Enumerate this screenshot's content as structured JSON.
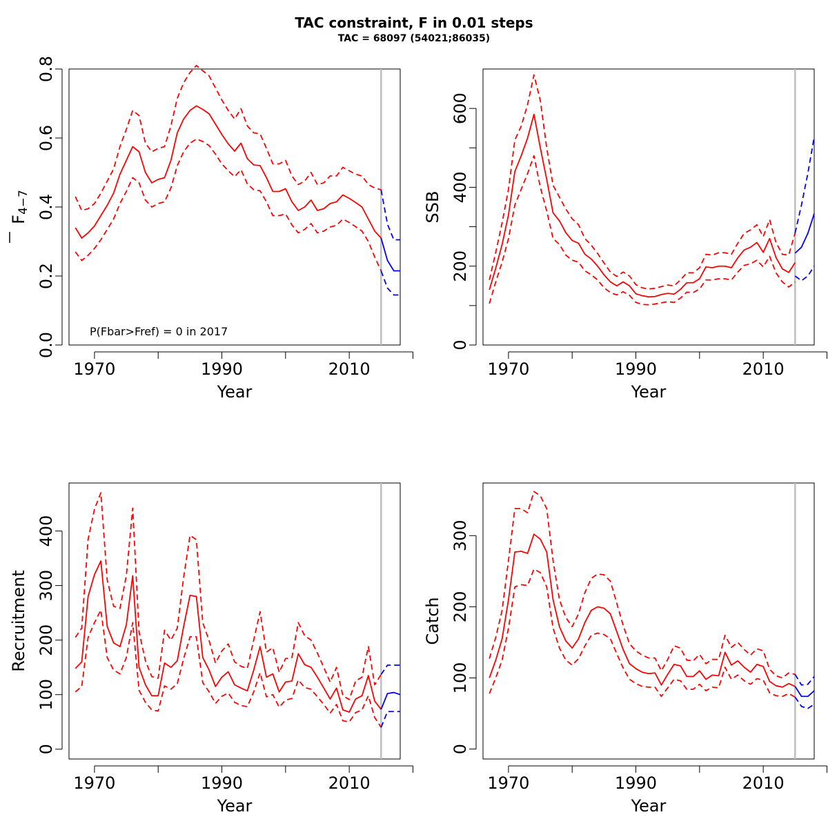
{
  "figure": {
    "title": "TAC constraint, F in 0.01 steps",
    "subtitle": "TAC = 68097 (54021;86035)"
  },
  "chart_data": [
    {
      "id": "fbar",
      "type": "line",
      "ylabel_main": "F",
      "ylabel_sub": "4−7",
      "xlabel": "Year",
      "xlim": [
        1966,
        2018
      ],
      "ylim": [
        0,
        0.8
      ],
      "xticks": [
        1970,
        1980,
        1990,
        2000,
        2010,
        2020
      ],
      "xtick_labels": [
        "1970",
        "",
        "1990",
        "",
        "2010",
        ""
      ],
      "yticks": [
        0,
        0.2,
        0.4,
        0.6,
        0.8
      ],
      "ytick_labels": [
        "0.0",
        "0.2",
        "0.4",
        "0.6",
        "0.8"
      ],
      "vline": 2015,
      "annotation": "P(Fbar>Fref) = 0  in 2017",
      "x": [
        1967,
        1968,
        1969,
        1970,
        1971,
        1972,
        1973,
        1974,
        1975,
        1976,
        1977,
        1978,
        1979,
        1980,
        1981,
        1982,
        1983,
        1984,
        1985,
        1986,
        1987,
        1988,
        1989,
        1990,
        1991,
        1992,
        1993,
        1994,
        1995,
        1996,
        1997,
        1998,
        1999,
        2000,
        2001,
        2002,
        2003,
        2004,
        2005,
        2006,
        2007,
        2008,
        2009,
        2010,
        2011,
        2012,
        2013,
        2014,
        2015
      ],
      "series": [
        {
          "values": [
            0.34,
            0.31,
            0.325,
            0.345,
            0.375,
            0.405,
            0.44,
            0.495,
            0.535,
            0.575,
            0.56,
            0.5,
            0.47,
            0.48,
            0.485,
            0.535,
            0.615,
            0.655,
            0.68,
            0.693,
            0.683,
            0.67,
            0.64,
            0.61,
            0.583,
            0.562,
            0.585,
            0.54,
            0.522,
            0.52,
            0.485,
            0.445,
            0.445,
            0.453,
            0.415,
            0.39,
            0.4,
            0.42,
            0.39,
            0.395,
            0.41,
            0.415,
            0.435,
            0.425,
            0.413,
            0.4,
            0.365,
            0.33,
            0.31
          ],
          "color": "#ff0000",
          "dash": false
        },
        {
          "values": [
            0.43,
            0.39,
            0.395,
            0.41,
            0.44,
            0.475,
            0.51,
            0.575,
            0.625,
            0.68,
            0.665,
            0.585,
            0.56,
            0.57,
            0.575,
            0.635,
            0.715,
            0.76,
            0.79,
            0.81,
            0.795,
            0.78,
            0.745,
            0.71,
            0.68,
            0.655,
            0.685,
            0.635,
            0.615,
            0.612,
            0.57,
            0.525,
            0.525,
            0.535,
            0.49,
            0.465,
            0.475,
            0.5,
            0.465,
            0.47,
            0.49,
            0.49,
            0.515,
            0.505,
            0.495,
            0.49,
            0.465,
            0.455,
            0.45
          ],
          "color": "#ff0000",
          "dash": true
        },
        {
          "values": [
            0.27,
            0.245,
            0.26,
            0.28,
            0.305,
            0.335,
            0.365,
            0.41,
            0.445,
            0.485,
            0.47,
            0.42,
            0.4,
            0.41,
            0.415,
            0.455,
            0.52,
            0.56,
            0.585,
            0.597,
            0.59,
            0.578,
            0.553,
            0.525,
            0.505,
            0.488,
            0.508,
            0.467,
            0.45,
            0.447,
            0.415,
            0.375,
            0.375,
            0.38,
            0.348,
            0.325,
            0.335,
            0.352,
            0.325,
            0.33,
            0.342,
            0.347,
            0.365,
            0.355,
            0.343,
            0.33,
            0.3,
            0.255,
            0.215
          ],
          "color": "#ff0000",
          "dash": true
        }
      ],
      "projection_x": [
        2015,
        2016,
        2017,
        2018
      ],
      "projection": [
        {
          "values": [
            0.31,
            0.245,
            0.215,
            0.215
          ],
          "color": "#0000ff",
          "dash": false
        },
        {
          "values": [
            0.45,
            0.35,
            0.305,
            0.305
          ],
          "color": "#0000ff",
          "dash": true
        },
        {
          "values": [
            0.215,
            0.165,
            0.145,
            0.145
          ],
          "color": "#0000ff",
          "dash": true
        }
      ]
    },
    {
      "id": "ssb",
      "type": "line",
      "ylabel_main": "SSB",
      "ylabel_sub": "",
      "xlabel": "Year",
      "xlim": [
        1966,
        2018
      ],
      "ylim": [
        0,
        700
      ],
      "xticks": [
        1970,
        1980,
        1990,
        2000,
        2010,
        2020
      ],
      "xtick_labels": [
        "1970",
        "",
        "1990",
        "",
        "2010",
        ""
      ],
      "yticks": [
        0,
        100,
        200,
        300,
        400,
        500,
        600
      ],
      "ytick_labels": [
        "0",
        "",
        "200",
        "",
        "400",
        "",
        "600"
      ],
      "vline": 2015,
      "annotation": "",
      "x": [
        1967,
        1968,
        1969,
        1970,
        1971,
        1972,
        1973,
        1974,
        1975,
        1976,
        1977,
        1978,
        1979,
        1980,
        1981,
        1982,
        1983,
        1984,
        1985,
        1986,
        1987,
        1988,
        1989,
        1990,
        1991,
        1992,
        1993,
        1994,
        1995,
        1996,
        1997,
        1998,
        1999,
        2000,
        2001,
        2002,
        2003,
        2004,
        2005,
        2006,
        2007,
        2008,
        2009,
        2010,
        2011,
        2012,
        2013,
        2014,
        2015
      ],
      "series": [
        {
          "values": [
            140,
            195,
            255,
            330,
            440,
            480,
            525,
            585,
            500,
            420,
            335,
            315,
            285,
            265,
            258,
            230,
            218,
            200,
            178,
            160,
            150,
            160,
            150,
            130,
            125,
            122,
            123,
            128,
            131,
            129,
            141,
            158,
            158,
            168,
            198,
            196,
            200,
            200,
            196,
            221,
            241,
            248,
            260,
            235,
            270,
            222,
            193,
            184,
            209
          ],
          "color": "#ff0000",
          "dash": false
        },
        {
          "values": [
            165,
            235,
            310,
            395,
            520,
            555,
            610,
            685,
            620,
            500,
            405,
            375,
            345,
            320,
            305,
            270,
            253,
            232,
            208,
            185,
            174,
            185,
            175,
            153,
            145,
            142,
            144,
            148,
            152,
            150,
            165,
            183,
            183,
            196,
            230,
            228,
            234,
            234,
            230,
            258,
            283,
            292,
            305,
            275,
            318,
            260,
            230,
            228,
            284
          ],
          "color": "#ff0000",
          "dash": true
        },
        {
          "values": [
            105,
            160,
            210,
            270,
            355,
            395,
            435,
            480,
            400,
            340,
            270,
            255,
            228,
            215,
            210,
            188,
            178,
            165,
            145,
            133,
            127,
            135,
            126,
            108,
            103,
            102,
            104,
            107,
            110,
            108,
            119,
            134,
            133,
            142,
            165,
            165,
            168,
            168,
            165,
            185,
            202,
            206,
            215,
            198,
            225,
            183,
            160,
            147,
            160
          ],
          "color": "#ff0000",
          "dash": true
        }
      ],
      "projection_x": [
        2015,
        2016,
        2017,
        2018
      ],
      "projection": [
        {
          "values": [
            233,
            248,
            283,
            333
          ],
          "color": "#0000ff",
          "dash": false
        },
        {
          "values": [
            284,
            355,
            435,
            528
          ],
          "color": "#0000ff",
          "dash": true
        },
        {
          "values": [
            175,
            163,
            175,
            200
          ],
          "color": "#0000ff",
          "dash": true
        }
      ]
    },
    {
      "id": "recruitment",
      "type": "line",
      "ylabel_main": "Recruitment",
      "ylabel_sub": "",
      "xlabel": "Year",
      "xlim": [
        1966,
        2018
      ],
      "ylim": [
        -18,
        488
      ],
      "xticks": [
        1970,
        1980,
        1990,
        2000,
        2010,
        2020
      ],
      "xtick_labels": [
        "1970",
        "",
        "1990",
        "",
        "2010",
        ""
      ],
      "yticks": [
        0,
        100,
        200,
        300,
        400
      ],
      "ytick_labels": [
        "0",
        "100",
        "200",
        "300",
        "400"
      ],
      "vline": 2015,
      "annotation": "",
      "x": [
        1967,
        1968,
        1969,
        1970,
        1971,
        1972,
        1973,
        1974,
        1975,
        1976,
        1977,
        1978,
        1979,
        1980,
        1981,
        1982,
        1983,
        1984,
        1985,
        1986,
        1987,
        1988,
        1989,
        1990,
        1991,
        1992,
        1993,
        1994,
        1995,
        1996,
        1997,
        1998,
        1999,
        2000,
        2001,
        2002,
        2003,
        2004,
        2005,
        2006,
        2007,
        2008,
        2009,
        2010,
        2011,
        2012,
        2013,
        2014,
        2015
      ],
      "series": [
        {
          "values": [
            148,
            160,
            280,
            320,
            345,
            225,
            195,
            188,
            228,
            318,
            150,
            118,
            98,
            98,
            158,
            150,
            162,
            225,
            282,
            280,
            168,
            145,
            115,
            132,
            142,
            118,
            112,
            107,
            145,
            188,
            132,
            138,
            105,
            123,
            125,
            175,
            155,
            150,
            132,
            112,
            92,
            112,
            72,
            68,
            92,
            98,
            135,
            88,
            73
          ],
          "color": "#ff0000",
          "dash": false
        },
        {
          "values": [
            205,
            222,
            385,
            440,
            470,
            310,
            262,
            258,
            318,
            442,
            215,
            162,
            133,
            130,
            218,
            200,
            222,
            315,
            392,
            384,
            232,
            199,
            158,
            180,
            193,
            160,
            152,
            148,
            200,
            252,
            178,
            186,
            141,
            166,
            168,
            232,
            208,
            200,
            176,
            150,
            123,
            150,
            98,
            91,
            125,
            132,
            188,
            118,
            137
          ],
          "color": "#ff0000",
          "dash": true
        },
        {
          "values": [
            105,
            115,
            205,
            232,
            255,
            168,
            145,
            138,
            168,
            232,
            108,
            86,
            72,
            70,
            116,
            110,
            120,
            166,
            206,
            206,
            122,
            105,
            84,
            97,
            103,
            86,
            80,
            78,
            105,
            140,
            96,
            100,
            77,
            90,
            93,
            127,
            113,
            110,
            96,
            82,
            66,
            82,
            52,
            50,
            67,
            72,
            98,
            58,
            40
          ],
          "color": "#ff0000",
          "dash": true
        }
      ],
      "projection_x": [
        2015,
        2016,
        2017,
        2018
      ],
      "projection": [
        {
          "values": [
            73,
            102,
            104,
            100
          ],
          "color": "#0000ff",
          "dash": false
        },
        {
          "values": [
            137,
            154,
            154,
            154
          ],
          "color": "#0000ff",
          "dash": true
        },
        {
          "values": [
            40,
            69,
            69,
            69
          ],
          "color": "#0000ff",
          "dash": true
        }
      ]
    },
    {
      "id": "catch",
      "type": "line",
      "ylabel_main": "Catch",
      "ylabel_sub": "",
      "xlabel": "Year",
      "xlim": [
        1966,
        2018
      ],
      "ylim": [
        -14,
        374
      ],
      "xticks": [
        1970,
        1980,
        1990,
        2000,
        2010,
        2020
      ],
      "xtick_labels": [
        "1970",
        "",
        "1990",
        "",
        "2010",
        ""
      ],
      "yticks": [
        0,
        100,
        200,
        300
      ],
      "ytick_labels": [
        "0",
        "100",
        "200",
        "300"
      ],
      "vline": 2015,
      "annotation": "",
      "x": [
        1967,
        1968,
        1969,
        1970,
        1971,
        1972,
        1973,
        1974,
        1975,
        1976,
        1977,
        1978,
        1979,
        1980,
        1981,
        1982,
        1983,
        1984,
        1985,
        1986,
        1987,
        1988,
        1989,
        1990,
        1991,
        1992,
        1993,
        1994,
        1995,
        1996,
        1997,
        1998,
        1999,
        2000,
        2001,
        2002,
        2003,
        2004,
        2005,
        2006,
        2007,
        2008,
        2009,
        2010,
        2011,
        2012,
        2013,
        2014,
        2015
      ],
      "series": [
        {
          "values": [
            100,
            125,
            155,
            210,
            277,
            278,
            275,
            302,
            295,
            277,
            210,
            172,
            152,
            142,
            155,
            178,
            195,
            200,
            198,
            190,
            165,
            140,
            120,
            113,
            108,
            106,
            107,
            90,
            105,
            119,
            117,
            102,
            102,
            110,
            98,
            104,
            103,
            136,
            118,
            124,
            115,
            108,
            119,
            116,
            95,
            89,
            87,
            92,
            88
          ],
          "color": "#ff0000",
          "dash": false
        },
        {
          "values": [
            127,
            157,
            195,
            265,
            338,
            338,
            332,
            362,
            356,
            338,
            265,
            210,
            185,
            172,
            190,
            220,
            240,
            246,
            245,
            236,
            205,
            174,
            148,
            138,
            132,
            128,
            128,
            110,
            126,
            145,
            142,
            125,
            124,
            133,
            120,
            126,
            126,
            160,
            143,
            150,
            140,
            132,
            141,
            138,
            112,
            103,
            100,
            107,
            105
          ],
          "color": "#ff0000",
          "dash": true
        },
        {
          "values": [
            78,
            100,
            125,
            170,
            228,
            231,
            230,
            253,
            248,
            228,
            170,
            142,
            125,
            118,
            127,
            145,
            160,
            163,
            161,
            155,
            134,
            114,
            98,
            92,
            88,
            87,
            87,
            74,
            86,
            98,
            96,
            84,
            84,
            91,
            82,
            87,
            86,
            115,
            98,
            104,
            96,
            91,
            99,
            97,
            79,
            75,
            74,
            78,
            73
          ],
          "color": "#ff0000",
          "dash": true
        }
      ],
      "projection_x": [
        2015,
        2016,
        2017,
        2018
      ],
      "projection": [
        {
          "values": [
            88,
            74,
            74,
            82
          ],
          "color": "#0000ff",
          "dash": false
        },
        {
          "values": [
            105,
            90,
            91,
            102
          ],
          "color": "#0000ff",
          "dash": true
        },
        {
          "values": [
            73,
            60,
            57,
            63
          ],
          "color": "#0000ff",
          "dash": true
        }
      ]
    }
  ]
}
